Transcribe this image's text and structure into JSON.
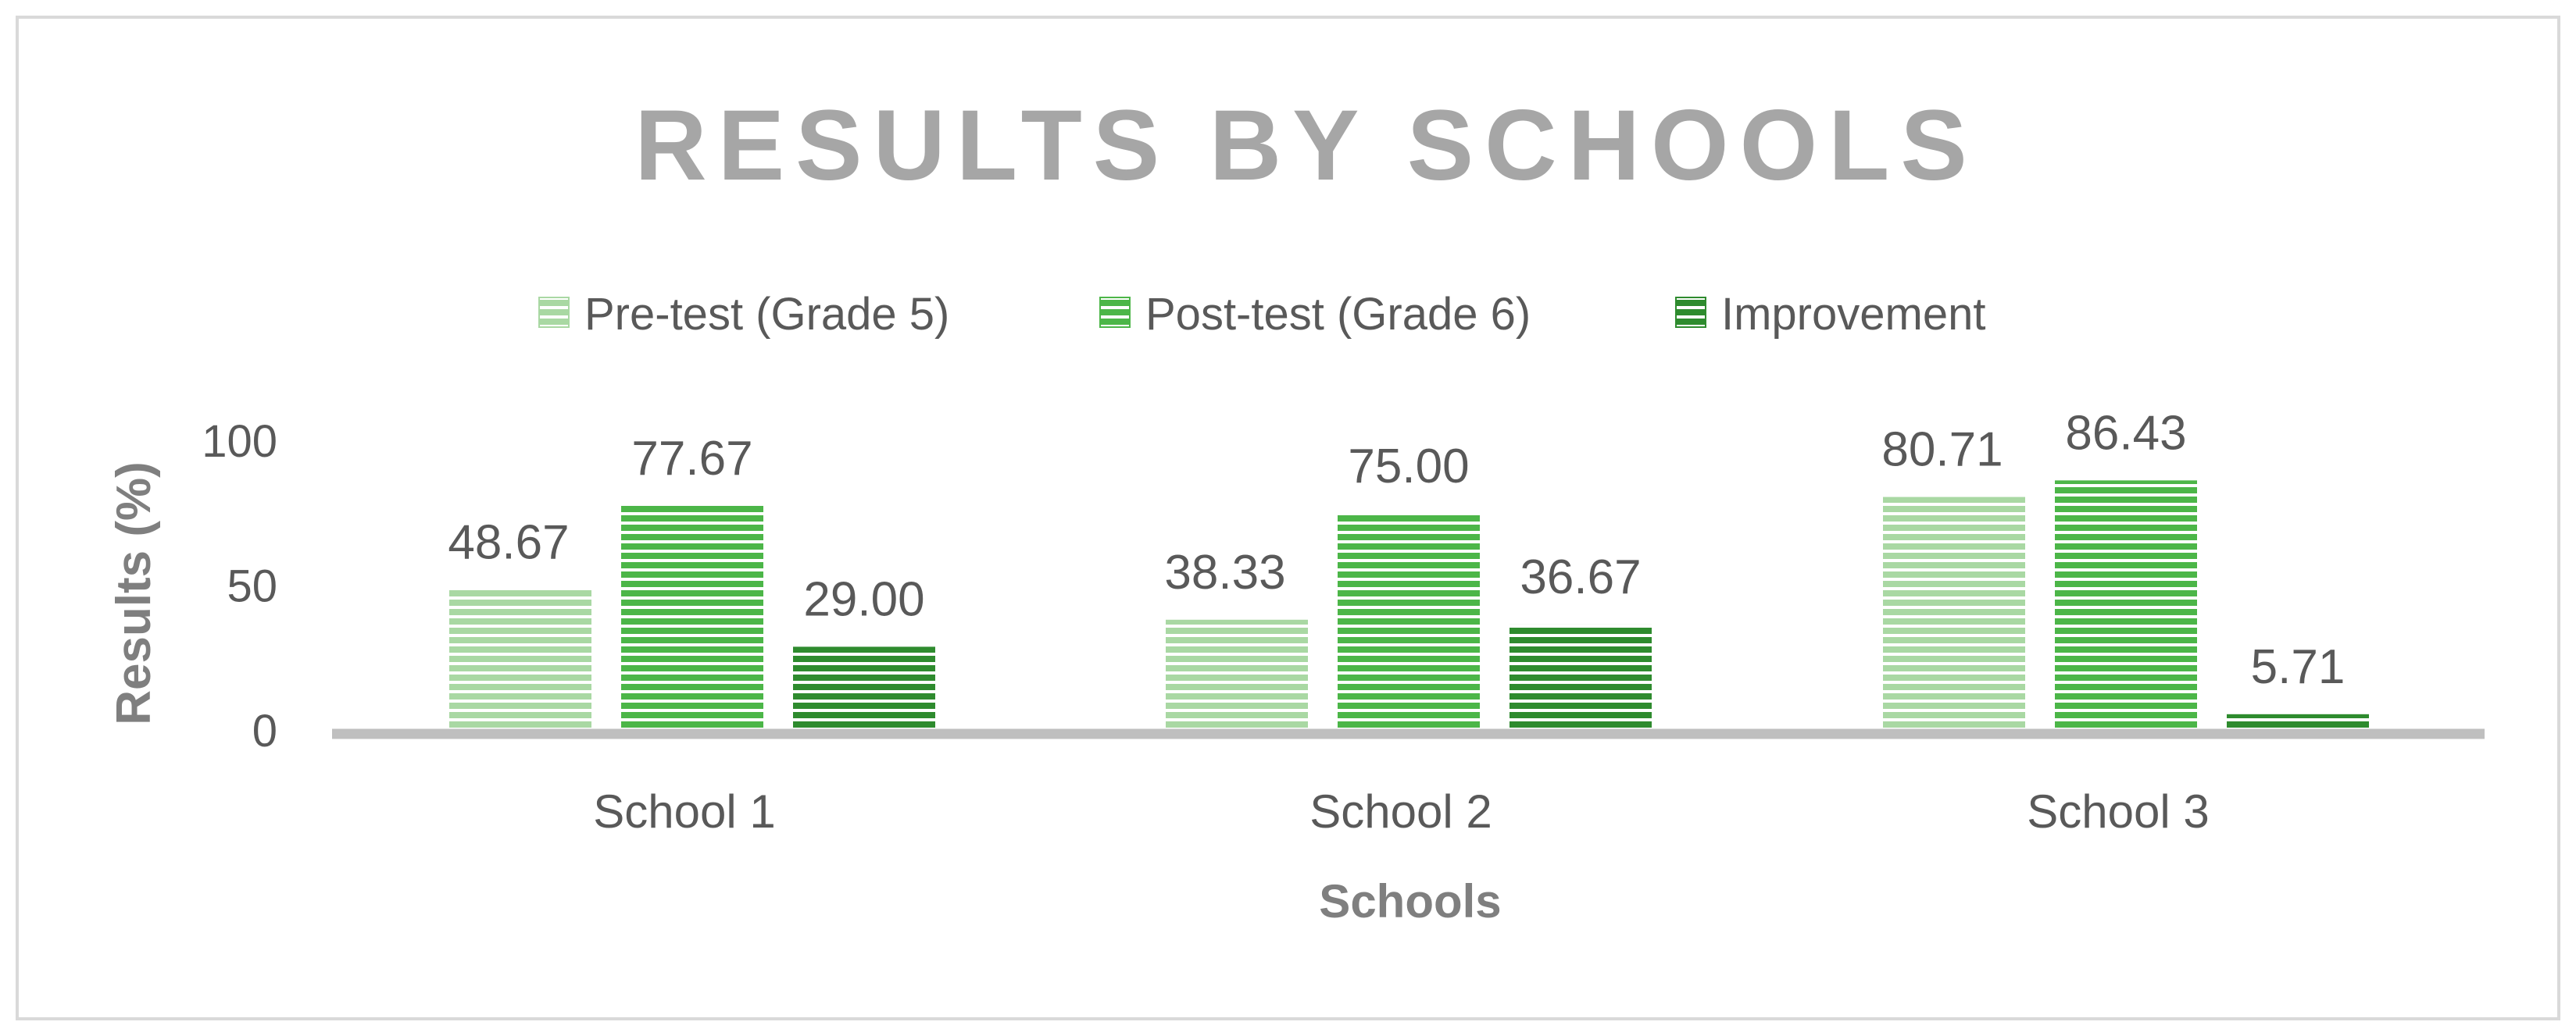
{
  "chart_data": {
    "type": "bar",
    "title": "RESULTS BY SCHOOLS",
    "xlabel": "Schools",
    "ylabel": "Results (%)",
    "ylim": [
      0,
      100
    ],
    "yticks": [
      0,
      50,
      100
    ],
    "categories": [
      "School 1",
      "School 2",
      "School 3"
    ],
    "series": [
      {
        "name": "Pre-test (Grade 5)",
        "values": [
          48.67,
          38.33,
          80.71
        ],
        "labels": [
          "48.67",
          "38.33",
          "80.71"
        ],
        "color": "#a9d8a3"
      },
      {
        "name": "Post-test (Grade 6)",
        "values": [
          77.67,
          75.0,
          86.43
        ],
        "labels": [
          "77.67",
          "75.00",
          "86.43"
        ],
        "color": "#4cb648"
      },
      {
        "name": "Improvement",
        "values": [
          29.0,
          36.67,
          5.71
        ],
        "labels": [
          "29.00",
          "36.67",
          "5.71"
        ],
        "color": "#2e8b2e"
      }
    ],
    "legend_position": "top",
    "grid": false,
    "bar_style": "horizontal-stripes"
  },
  "colors": {
    "title": "#a6a6a6",
    "text": "#595959",
    "axis_label": "#7f7f7f",
    "axis_line": "#bfbfbf",
    "border": "#d9d9d9"
  }
}
